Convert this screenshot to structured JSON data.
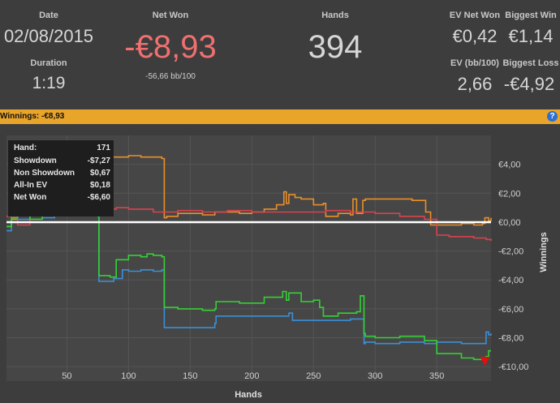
{
  "header": {
    "date_label": "Date",
    "date_value": "02/08/2015",
    "duration_label": "Duration",
    "duration_value": "1:19",
    "net_won_label": "Net Won",
    "net_won_value": "-€8,93",
    "net_won_bb": "-56,66 bb/100",
    "hands_label": "Hands",
    "hands_value": "394",
    "ev_net_won_label": "EV Net Won",
    "ev_net_won_value": "€0,42",
    "biggest_win_label": "Biggest Win",
    "biggest_win_value": "€1,14",
    "ev_bb_label": "EV (bb/100)",
    "ev_bb_value": "2,66",
    "biggest_loss_label": "Biggest Loss",
    "biggest_loss_value": "-€4,92"
  },
  "winnings_bar": {
    "label": "Winnings:",
    "value": "-€8,93",
    "help_icon": "?"
  },
  "tooltip": {
    "rows": [
      {
        "key": "Hand:",
        "value": "171"
      },
      {
        "key": "Showdown",
        "value": "-$7,27"
      },
      {
        "key": "Non Showdown",
        "value": "$0,67"
      },
      {
        "key": "All-In EV",
        "value": "$0,18"
      },
      {
        "key": "Net Won",
        "value": "-$6,60"
      }
    ]
  },
  "colors": {
    "net_won": "#35d035",
    "all_in_ev": "#3a8fd8",
    "showdown": "#e98f2a",
    "non_showdown": "#d8434e",
    "zero_line": "#ffffff",
    "accent": "#e9a42a",
    "negative": "#f07070"
  },
  "chart_data": {
    "type": "line",
    "xlabel": "Hands",
    "ylabel": "Winnings",
    "xlim": [
      1,
      394
    ],
    "ylim": [
      -11,
      6
    ],
    "x_ticks": [
      50,
      100,
      150,
      200,
      250,
      300,
      350
    ],
    "x_tick_labels": [
      "50",
      "100",
      "150",
      "200",
      "250",
      "300",
      "350"
    ],
    "y_ticks": [
      4,
      2,
      0,
      -2,
      -4,
      -6,
      -8,
      -10
    ],
    "y_tick_labels": [
      "€4,00",
      "€2,00",
      "€0,00",
      "-€2,00",
      "-€4,00",
      "-€6,00",
      "-€8,00",
      "-€10,00"
    ],
    "series": [
      {
        "key": "showdown",
        "x": [
          1,
          5,
          10,
          20,
          40,
          60,
          70,
          75,
          76,
          80,
          100,
          110,
          127,
          129,
          131,
          140,
          160,
          170,
          190,
          200,
          210,
          220,
          226,
          228,
          230,
          235,
          240,
          250,
          258,
          260,
          270,
          280,
          282,
          285,
          290,
          292,
          300,
          320,
          330,
          341,
          345,
          360,
          370,
          380,
          387,
          389,
          392,
          394
        ],
        "y": [
          -0.3,
          0.2,
          0.5,
          0.8,
          0.9,
          1.0,
          1.3,
          1.0,
          4.6,
          4.5,
          4.6,
          4.5,
          4.4,
          0.3,
          0.4,
          0.6,
          0.5,
          0.7,
          0.6,
          0.7,
          0.9,
          1.2,
          2.1,
          1.3,
          1.9,
          1.7,
          1.6,
          1.2,
          1.3,
          0.4,
          0.6,
          0.5,
          1.6,
          0.6,
          1.5,
          1.6,
          1.6,
          1.6,
          1.5,
          0.7,
          -0.2,
          -0.2,
          -0.1,
          -0.2,
          -0.1,
          0.3,
          0.1,
          0.3
        ]
      },
      {
        "key": "non_showdown",
        "x": [
          1,
          10,
          20,
          30,
          40,
          50,
          60,
          70,
          80,
          90,
          100,
          120,
          140,
          160,
          180,
          200,
          220,
          240,
          260,
          280,
          300,
          320,
          340,
          350,
          360,
          370,
          380,
          390,
          394
        ],
        "y": [
          0.4,
          -0.2,
          0.5,
          0.9,
          1.0,
          1.1,
          1.2,
          1.0,
          0.9,
          1.0,
          0.9,
          0.7,
          0.8,
          0.7,
          0.8,
          0.7,
          0.7,
          0.7,
          0.8,
          0.7,
          0.6,
          0.4,
          0.2,
          -0.9,
          -1.0,
          -1.0,
          -1.1,
          -1.2,
          -1.3
        ]
      },
      {
        "key": "all_in_ev",
        "x": [
          1,
          5,
          10,
          20,
          30,
          40,
          50,
          55,
          58,
          60,
          70,
          75,
          76,
          85,
          88,
          95,
          100,
          110,
          120,
          127,
          129,
          140,
          160,
          170,
          171,
          200,
          230,
          233,
          250,
          260,
          275,
          280,
          285,
          291,
          292,
          300,
          320,
          340,
          350,
          370,
          380,
          389,
          390,
          392,
          394
        ],
        "y": [
          -0.6,
          0.5,
          0.2,
          0.5,
          0.3,
          0.7,
          0.6,
          0.8,
          0.8,
          0.8,
          0.8,
          0.4,
          -4.1,
          -4.1,
          -3.9,
          -3.3,
          -3.4,
          -3.3,
          -3.4,
          -3.3,
          -7.3,
          -7.3,
          -7.3,
          -7.0,
          -6.5,
          -6.5,
          -6.3,
          -6.8,
          -6.8,
          -6.8,
          -6.8,
          -6.7,
          -6.7,
          -8.4,
          -8.3,
          -8.4,
          -8.3,
          -8.4,
          -8.3,
          -8.4,
          -8.4,
          -8.4,
          -7.6,
          -7.8,
          -7.7
        ]
      },
      {
        "key": "net_won",
        "x": [
          1,
          5,
          10,
          20,
          30,
          40,
          50,
          55,
          58,
          60,
          70,
          74,
          75,
          76,
          85,
          90,
          100,
          110,
          115,
          120,
          127,
          129,
          140,
          160,
          170,
          171,
          190,
          210,
          225,
          228,
          230,
          240,
          250,
          255,
          258,
          270,
          285,
          288,
          291,
          292,
          300,
          320,
          340,
          350,
          370,
          380,
          385,
          389,
          390,
          392,
          394
        ],
        "y": [
          -0.3,
          0.3,
          0.5,
          0.2,
          0.7,
          0.8,
          0.9,
          1.5,
          1.8,
          1.3,
          1.3,
          1.0,
          1.0,
          -3.7,
          -3.8,
          -2.6,
          -2.3,
          -2.4,
          -2.2,
          -2.3,
          -2.4,
          -5.9,
          -6.0,
          -6.1,
          -6.0,
          -5.5,
          -5.6,
          -5.2,
          -4.8,
          -5.4,
          -4.9,
          -5.5,
          -5.4,
          -5.9,
          -6.5,
          -6.3,
          -6.2,
          -5.1,
          -7.7,
          -7.9,
          -8.0,
          -7.9,
          -8.2,
          -9.1,
          -9.4,
          -9.5,
          -9.5,
          -9.6,
          -9.3,
          -8.9,
          -8.9
        ]
      }
    ],
    "markers": [
      {
        "type": "high",
        "x": 58,
        "y": 1.8,
        "color": "#2f9a2f"
      },
      {
        "type": "low",
        "x": 389,
        "y": -9.6,
        "color": "#e01010"
      }
    ]
  }
}
